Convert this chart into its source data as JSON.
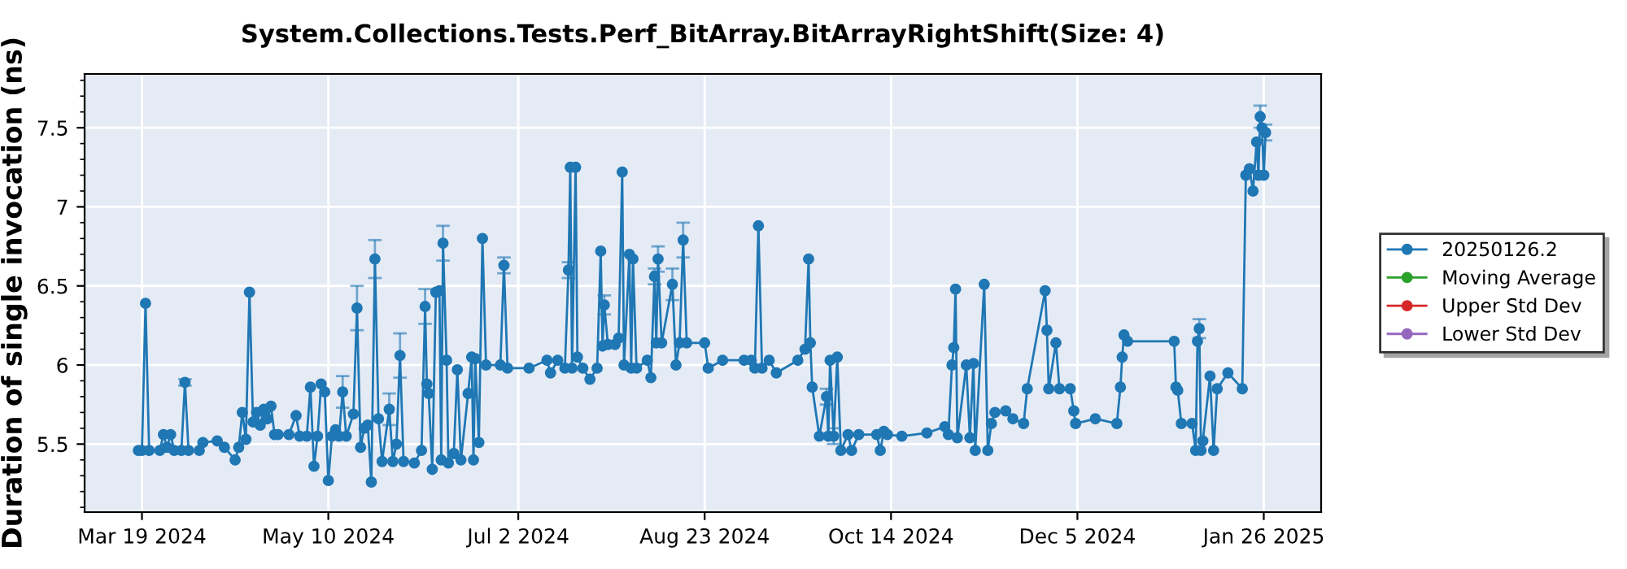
{
  "chart_data": {
    "type": "line",
    "title": "System.Collections.Tests.Perf_BitArray.BitArrayRightShift(Size: 4)",
    "ylabel": "Duration of single invocation (ns)",
    "xlim": [
      "2024-03-03",
      "2025-02-11"
    ],
    "xticks": [
      {
        "value": "2024-03-19",
        "label": "Mar 19 2024"
      },
      {
        "value": "2024-05-10",
        "label": "May 10 2024"
      },
      {
        "value": "2024-07-02",
        "label": "Jul 2 2024"
      },
      {
        "value": "2024-08-23",
        "label": "Aug 23 2024"
      },
      {
        "value": "2024-10-14",
        "label": "Oct 14 2024"
      },
      {
        "value": "2024-12-05",
        "label": "Dec 5 2024"
      },
      {
        "value": "2025-01-26",
        "label": "Jan 26 2025"
      }
    ],
    "ylim": [
      5.07,
      7.84
    ],
    "yticks": [
      5.5,
      6,
      6.5,
      7,
      7.5
    ],
    "grid": true,
    "legend": "right",
    "marker": "circle",
    "line_style": "solid",
    "series": [
      {
        "name": "20250126.2",
        "color": "#1f77b4",
        "x": [
          "2024-03-18",
          "2024-03-19",
          "2024-03-20",
          "2024-03-21",
          "2024-03-24",
          "2024-03-25",
          "2024-03-26",
          "2024-03-27",
          "2024-03-28",
          "2024-03-30",
          "2024-03-31",
          "2024-04-01",
          "2024-04-04",
          "2024-04-05",
          "2024-04-09",
          "2024-04-11",
          "2024-04-14",
          "2024-04-15",
          "2024-04-16",
          "2024-04-17",
          "2024-04-18",
          "2024-04-19",
          "2024-04-20",
          "2024-04-21",
          "2024-04-22",
          "2024-04-23",
          "2024-04-24",
          "2024-04-25",
          "2024-04-26",
          "2024-04-29",
          "2024-05-01",
          "2024-05-02",
          "2024-05-04",
          "2024-05-05",
          "2024-05-06",
          "2024-05-07",
          "2024-05-08",
          "2024-05-09",
          "2024-05-10",
          "2024-05-11",
          "2024-05-12",
          "2024-05-13",
          "2024-05-14",
          "2024-05-15",
          "2024-05-17",
          "2024-05-18",
          "2024-05-19",
          "2024-05-20",
          "2024-05-21",
          "2024-05-22",
          "2024-05-23",
          "2024-05-24",
          "2024-05-25",
          "2024-05-27",
          "2024-05-28",
          "2024-05-29",
          "2024-05-30",
          "2024-05-31",
          "2024-06-03",
          "2024-06-05",
          "2024-06-06",
          "2024-06-06T12:00",
          "2024-06-07",
          "2024-06-08",
          "2024-06-09",
          "2024-06-10",
          "2024-06-10T12:00",
          "2024-06-11",
          "2024-06-12",
          "2024-06-12T12:00",
          "2024-06-14",
          "2024-06-15",
          "2024-06-16",
          "2024-06-18",
          "2024-06-19",
          "2024-06-19T12:00",
          "2024-06-20",
          "2024-06-21",
          "2024-06-22",
          "2024-06-23",
          "2024-06-27",
          "2024-06-28",
          "2024-06-29",
          "2024-07-05",
          "2024-07-10",
          "2024-07-11",
          "2024-07-13",
          "2024-07-15",
          "2024-07-16",
          "2024-07-16T12:00",
          "2024-07-17",
          "2024-07-18",
          "2024-07-18T12:00",
          "2024-07-20",
          "2024-07-22",
          "2024-07-24",
          "2024-07-25",
          "2024-07-25T12:00",
          "2024-07-26",
          "2024-07-27",
          "2024-07-29",
          "2024-07-30",
          "2024-07-31",
          "2024-07-31T12:00",
          "2024-08-02",
          "2024-08-02T12:00",
          "2024-08-03",
          "2024-08-04",
          "2024-08-07",
          "2024-08-08",
          "2024-08-09",
          "2024-08-09T12:00",
          "2024-08-10",
          "2024-08-11",
          "2024-08-14",
          "2024-08-15",
          "2024-08-16",
          "2024-08-17",
          "2024-08-18",
          "2024-08-23",
          "2024-08-24",
          "2024-08-28",
          "2024-09-03",
          "2024-09-05",
          "2024-09-06",
          "2024-09-07",
          "2024-09-08",
          "2024-09-10",
          "2024-09-12",
          "2024-09-18",
          "2024-09-20",
          "2024-09-21",
          "2024-09-21T12:00",
          "2024-09-22",
          "2024-09-24",
          "2024-09-26",
          "2024-09-26T12:00",
          "2024-09-27",
          "2024-09-28",
          "2024-09-29",
          "2024-09-30",
          "2024-10-02",
          "2024-10-03",
          "2024-10-05",
          "2024-10-10",
          "2024-10-11",
          "2024-10-12",
          "2024-10-13",
          "2024-10-17",
          "2024-10-24",
          "2024-10-29",
          "2024-10-30",
          "2024-10-31",
          "2024-10-31T12:00",
          "2024-11-01",
          "2024-11-01T12:00",
          "2024-11-04",
          "2024-11-05",
          "2024-11-06",
          "2024-11-06T12:00",
          "2024-11-09",
          "2024-11-10",
          "2024-11-11",
          "2024-11-12",
          "2024-11-15",
          "2024-11-17",
          "2024-11-20",
          "2024-11-21",
          "2024-11-26",
          "2024-11-26T12:00",
          "2024-11-27",
          "2024-11-29",
          "2024-11-30",
          "2024-12-03",
          "2024-12-04",
          "2024-12-04T12:00",
          "2024-12-10",
          "2024-12-16",
          "2024-12-17",
          "2024-12-17T12:00",
          "2024-12-18",
          "2024-12-19",
          "2025-01-01",
          "2025-01-01T12:00",
          "2025-01-02",
          "2025-01-03",
          "2025-01-06",
          "2025-01-07",
          "2025-01-07T12:00",
          "2025-01-08",
          "2025-01-08T12:00",
          "2025-01-09",
          "2025-01-11",
          "2025-01-12",
          "2025-01-13",
          "2025-01-16",
          "2025-01-20",
          "2025-01-21",
          "2025-01-22",
          "2025-01-23",
          "2025-01-24",
          "2025-01-24T12:00",
          "2025-01-25",
          "2025-01-25T12:00",
          "2025-01-26",
          "2025-01-26T12:00"
        ],
        "values": [
          5.46,
          5.46,
          6.39,
          5.46,
          5.46,
          5.56,
          5.48,
          5.56,
          5.46,
          5.46,
          5.89,
          5.46,
          5.46,
          5.51,
          5.52,
          5.48,
          5.4,
          5.48,
          5.7,
          5.53,
          6.46,
          5.64,
          5.7,
          5.62,
          5.72,
          5.66,
          5.74,
          5.56,
          5.56,
          5.56,
          5.68,
          5.55,
          5.55,
          5.86,
          5.36,
          5.55,
          5.88,
          5.83,
          5.27,
          5.55,
          5.59,
          5.55,
          5.83,
          5.55,
          5.69,
          6.36,
          5.48,
          5.6,
          5.62,
          5.26,
          6.67,
          5.66,
          5.39,
          5.72,
          5.39,
          5.5,
          6.06,
          5.39,
          5.38,
          5.46,
          6.37,
          5.88,
          5.82,
          5.34,
          6.46,
          6.47,
          5.4,
          6.77,
          6.03,
          5.38,
          5.44,
          5.97,
          5.4,
          5.82,
          6.05,
          5.4,
          6.04,
          5.51,
          6.8,
          6.0,
          6.0,
          6.63,
          5.98,
          5.98,
          6.03,
          5.95,
          6.03,
          5.98,
          6.6,
          7.25,
          5.98,
          7.25,
          6.05,
          5.98,
          5.91,
          5.98,
          6.72,
          6.12,
          6.38,
          6.13,
          6.13,
          6.17,
          7.22,
          6.0,
          6.7,
          5.98,
          6.67,
          5.98,
          6.03,
          5.92,
          6.56,
          6.14,
          6.67,
          6.14,
          6.51,
          6.0,
          6.14,
          6.79,
          6.14,
          6.14,
          5.98,
          6.03,
          6.03,
          6.03,
          5.98,
          6.88,
          5.98,
          6.03,
          5.95,
          6.03,
          6.1,
          6.67,
          6.14,
          5.86,
          5.55,
          5.8,
          5.55,
          6.03,
          5.55,
          6.05,
          5.46,
          5.56,
          5.46,
          5.56,
          5.56,
          5.46,
          5.58,
          5.56,
          5.55,
          5.57,
          5.61,
          5.56,
          6.0,
          6.11,
          6.48,
          5.54,
          6.0,
          5.54,
          6.01,
          5.46,
          6.51,
          5.46,
          5.63,
          5.7,
          5.71,
          5.66,
          5.63,
          5.85,
          6.47,
          6.22,
          5.85,
          6.14,
          5.85,
          5.85,
          5.71,
          5.63,
          5.66,
          5.63,
          5.86,
          6.05,
          6.19,
          6.15,
          6.15,
          5.86,
          5.84,
          5.63,
          5.63,
          5.46,
          6.15,
          6.23,
          5.46,
          5.52,
          5.93,
          5.46,
          5.85,
          5.95,
          5.85,
          7.2,
          7.24,
          7.1,
          7.41,
          7.2,
          7.57,
          7.5,
          7.2,
          7.47
        ],
        "errors": [
          null,
          null,
          null,
          null,
          null,
          null,
          null,
          null,
          null,
          null,
          0.02,
          null,
          null,
          null,
          null,
          null,
          null,
          null,
          null,
          null,
          null,
          null,
          null,
          null,
          null,
          null,
          null,
          null,
          null,
          null,
          null,
          null,
          null,
          null,
          null,
          null,
          null,
          null,
          null,
          null,
          null,
          null,
          0.1,
          null,
          null,
          0.14,
          null,
          null,
          null,
          null,
          0.12,
          null,
          null,
          0.1,
          null,
          null,
          0.14,
          null,
          null,
          null,
          0.11,
          null,
          null,
          null,
          null,
          null,
          null,
          0.11,
          null,
          null,
          null,
          null,
          null,
          null,
          null,
          null,
          null,
          null,
          null,
          null,
          null,
          0.05,
          null,
          null,
          null,
          null,
          null,
          null,
          0.05,
          null,
          null,
          null,
          null,
          null,
          null,
          null,
          null,
          null,
          0.06,
          null,
          null,
          null,
          null,
          null,
          null,
          null,
          null,
          null,
          null,
          null,
          0.05,
          null,
          0.08,
          null,
          0.1,
          null,
          null,
          0.11,
          null,
          null,
          null,
          null,
          null,
          null,
          null,
          null,
          null,
          null,
          null,
          null,
          null,
          null,
          null,
          null,
          null,
          0.05,
          null,
          null,
          0.05,
          null,
          null,
          null,
          null,
          null,
          null,
          null,
          null,
          null,
          null,
          null,
          null,
          null,
          null,
          null,
          null,
          null,
          null,
          null,
          null,
          null,
          null,
          null,
          null,
          null,
          null,
          null,
          null,
          null,
          null,
          null,
          null,
          null,
          null,
          null,
          null,
          null,
          null,
          null,
          null,
          null,
          null,
          null,
          null,
          null,
          null,
          null,
          null,
          null,
          null,
          0.06,
          null,
          null,
          null,
          null,
          null,
          null,
          null,
          null,
          null,
          null,
          null,
          null,
          0.07,
          null,
          null,
          0.05
        ]
      },
      {
        "name": "Moving Average",
        "color": "#2ca02c"
      },
      {
        "name": "Upper Std Dev",
        "color": "#d62728"
      },
      {
        "name": "Lower Std Dev",
        "color": "#9467bd"
      }
    ]
  }
}
